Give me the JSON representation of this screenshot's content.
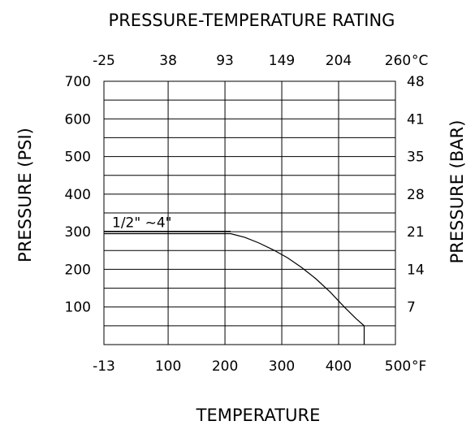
{
  "chart_data": {
    "type": "line",
    "title": "PRESSURE-TEMPERATURE RATING",
    "xlabel": "TEMPERATURE",
    "ylabel": "PRESSURE (PSI)",
    "ylabel_right": "PRESSURE (BAR)",
    "x_unit": "°F",
    "x_top_unit": "°C",
    "xlim": [
      -13,
      500
    ],
    "ylim": [
      0,
      700
    ],
    "x_ticks": [
      {
        "value": -13,
        "label": "-13"
      },
      {
        "value": 100,
        "label": "100"
      },
      {
        "value": 200,
        "label": "200"
      },
      {
        "value": 300,
        "label": "300"
      },
      {
        "value": 400,
        "label": "400"
      },
      {
        "value": 500,
        "label": "500"
      }
    ],
    "x_top_ticks": [
      {
        "value": -13,
        "label": "-25"
      },
      {
        "value": 100,
        "label": "38"
      },
      {
        "value": 200,
        "label": "93"
      },
      {
        "value": 300,
        "label": "149"
      },
      {
        "value": 400,
        "label": "204"
      },
      {
        "value": 500,
        "label": "260"
      }
    ],
    "y_ticks": [
      {
        "value": 100,
        "label": "100"
      },
      {
        "value": 200,
        "label": "200"
      },
      {
        "value": 300,
        "label": "300"
      },
      {
        "value": 400,
        "label": "400"
      },
      {
        "value": 500,
        "label": "500"
      },
      {
        "value": 600,
        "label": "600"
      },
      {
        "value": 700,
        "label": "700"
      }
    ],
    "y_right_ticks": [
      {
        "value": 100,
        "label": "7"
      },
      {
        "value": 200,
        "label": "14"
      },
      {
        "value": 300,
        "label": "21"
      },
      {
        "value": 400,
        "label": "28"
      },
      {
        "value": 500,
        "label": "35"
      },
      {
        "value": 600,
        "label": "41"
      },
      {
        "value": 700,
        "label": "48"
      }
    ],
    "y_gridlines": [
      50,
      100,
      150,
      200,
      250,
      300,
      350,
      400,
      450,
      500,
      550,
      600,
      650,
      700
    ],
    "x_gridlines": [
      -13,
      100,
      200,
      300,
      400,
      500
    ],
    "grid": true,
    "series": [
      {
        "name": "1/2\"  ~4\"",
        "x": [
          -13,
          210,
          235,
          260,
          285,
          310,
          335,
          360,
          385,
          410,
          430,
          445,
          445
        ],
        "y": [
          295,
          295,
          285,
          270,
          252,
          231,
          205,
          175,
          140,
          100,
          70,
          50,
          0
        ]
      }
    ]
  }
}
